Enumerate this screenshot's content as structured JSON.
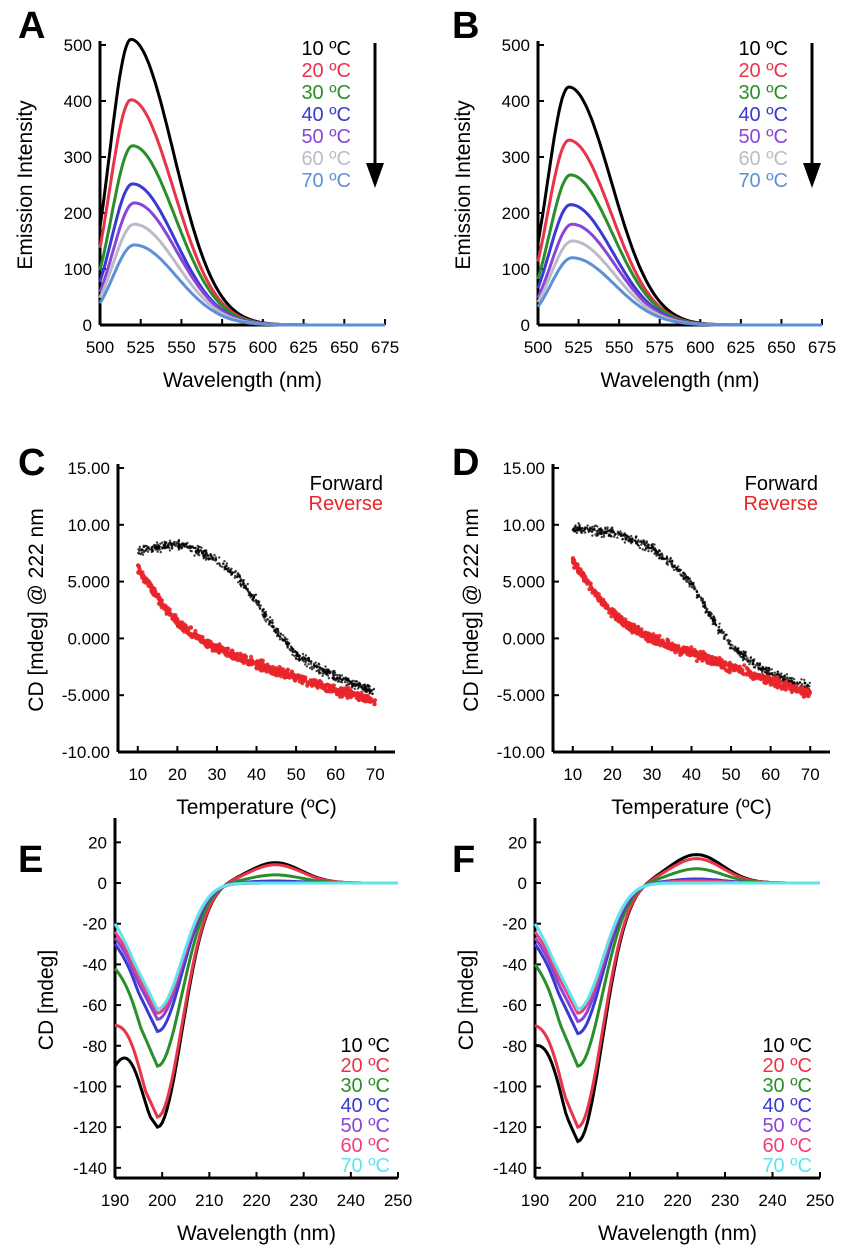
{
  "chart_data": [
    {
      "panel": "A",
      "type": "line",
      "xlabel": "Wavelength (nm)",
      "ylabel": "Emission Intensity",
      "xlim": [
        500,
        675
      ],
      "ylim": [
        0,
        500
      ],
      "xticks": [
        500,
        525,
        550,
        575,
        600,
        625,
        650,
        675
      ],
      "yticks": [
        0,
        100,
        200,
        300,
        400,
        500
      ],
      "legend_arrow": true,
      "series": [
        {
          "name": "10 ºC",
          "color": "#000000",
          "peak_x": 519,
          "peak_y": 510
        },
        {
          "name": "20 ºC",
          "color": "#e8334a",
          "peak_x": 519,
          "peak_y": 402
        },
        {
          "name": "30 ºC",
          "color": "#2a8f2a",
          "peak_x": 520,
          "peak_y": 320
        },
        {
          "name": "40 ºC",
          "color": "#3a3ad0",
          "peak_x": 520,
          "peak_y": 252
        },
        {
          "name": "50 ºC",
          "color": "#8a45d8",
          "peak_x": 521,
          "peak_y": 218
        },
        {
          "name": "60 ºC",
          "color": "#bcbcc8",
          "peak_x": 521,
          "peak_y": 180
        },
        {
          "name": "70 ºC",
          "color": "#5e8fd8",
          "peak_x": 521,
          "peak_y": 143
        }
      ]
    },
    {
      "panel": "B",
      "type": "line",
      "xlabel": "Wavelength (nm)",
      "ylabel": "Emission Intensity",
      "xlim": [
        500,
        675
      ],
      "ylim": [
        0,
        500
      ],
      "xticks": [
        500,
        525,
        550,
        575,
        600,
        625,
        650,
        675
      ],
      "yticks": [
        0,
        100,
        200,
        300,
        400,
        500
      ],
      "legend_arrow": true,
      "series": [
        {
          "name": "10 ºC",
          "color": "#000000",
          "peak_x": 519,
          "peak_y": 425
        },
        {
          "name": "20 ºC",
          "color": "#e8334a",
          "peak_x": 519,
          "peak_y": 330
        },
        {
          "name": "30 ºC",
          "color": "#2a8f2a",
          "peak_x": 520,
          "peak_y": 268
        },
        {
          "name": "40 ºC",
          "color": "#3a3ad0",
          "peak_x": 520,
          "peak_y": 215
        },
        {
          "name": "50 ºC",
          "color": "#8a45d8",
          "peak_x": 521,
          "peak_y": 180
        },
        {
          "name": "60 ºC",
          "color": "#bcbcc8",
          "peak_x": 521,
          "peak_y": 150
        },
        {
          "name": "70 ºC",
          "color": "#5e8fd8",
          "peak_x": 521,
          "peak_y": 120
        }
      ]
    },
    {
      "panel": "C",
      "type": "scatter",
      "xlabel": "Temperature (ºC)",
      "ylabel": "CD [mdeg] @ 222 nm",
      "xlim": [
        5,
        75
      ],
      "ylim": [
        -10,
        15
      ],
      "xticks": [
        10,
        20,
        30,
        40,
        50,
        60,
        70
      ],
      "yticks": [
        -10,
        -5,
        0,
        5,
        10,
        15
      ],
      "ytick_labels": [
        "-10.00",
        "-5.000",
        "0.000",
        "5.000",
        "10.00",
        "15.00"
      ],
      "series": [
        {
          "name": "Forward",
          "color": "#000000",
          "x": [
            10,
            15,
            20,
            25,
            30,
            35,
            40,
            45,
            50,
            55,
            60,
            65,
            70
          ],
          "y": [
            7.7,
            8.0,
            8.3,
            7.7,
            6.9,
            5.5,
            3.3,
            0.6,
            -1.4,
            -2.5,
            -3.4,
            -4.0,
            -4.8
          ]
        },
        {
          "name": "Reverse",
          "color": "#e8262a",
          "x": [
            10,
            15,
            20,
            25,
            30,
            35,
            40,
            45,
            50,
            55,
            60,
            65,
            70
          ],
          "y": [
            6.2,
            3.6,
            1.4,
            0.1,
            -0.9,
            -1.6,
            -2.3,
            -2.9,
            -3.4,
            -4.0,
            -4.5,
            -5.0,
            -5.6
          ]
        }
      ]
    },
    {
      "panel": "D",
      "type": "scatter",
      "xlabel": "Temperature (ºC)",
      "ylabel": "CD [mdeg] @ 222 nm",
      "xlim": [
        5,
        75
      ],
      "ylim": [
        -10,
        15
      ],
      "xticks": [
        10,
        20,
        30,
        40,
        50,
        60,
        70
      ],
      "yticks": [
        -10,
        -5,
        0,
        5,
        10,
        15
      ],
      "ytick_labels": [
        "-10.00",
        "-5.000",
        "0.000",
        "5.000",
        "10.00",
        "15.00"
      ],
      "series": [
        {
          "name": "Forward",
          "color": "#000000",
          "x": [
            10,
            15,
            20,
            25,
            30,
            35,
            40,
            45,
            50,
            55,
            60,
            65,
            70
          ],
          "y": [
            9.7,
            9.5,
            9.3,
            8.7,
            7.9,
            6.6,
            4.8,
            1.9,
            -0.7,
            -2.0,
            -3.0,
            -3.8,
            -4.3
          ]
        },
        {
          "name": "Reverse",
          "color": "#e8262a",
          "x": [
            10,
            15,
            20,
            25,
            30,
            35,
            40,
            45,
            50,
            55,
            60,
            65,
            70
          ],
          "y": [
            6.8,
            4.2,
            2.2,
            0.9,
            0.0,
            -0.7,
            -1.3,
            -1.9,
            -2.5,
            -3.1,
            -3.7,
            -4.3,
            -4.9
          ]
        }
      ]
    },
    {
      "panel": "E",
      "type": "line",
      "xlabel": "Wavelength (nm)",
      "ylabel": "CD [mdeg]",
      "xlim": [
        190,
        250
      ],
      "ylim": [
        -145,
        30
      ],
      "xticks": [
        190,
        200,
        210,
        220,
        230,
        240,
        250
      ],
      "yticks": [
        -140,
        -120,
        -100,
        -80,
        -60,
        -40,
        -20,
        0,
        20
      ],
      "series": [
        {
          "name": "10 ºC",
          "color": "#000000",
          "min": -120,
          "start": -90,
          "max": 10
        },
        {
          "name": "20 ºC",
          "color": "#e8334a",
          "min": -115,
          "start": -70,
          "max": 9
        },
        {
          "name": "30 ºC",
          "color": "#2a8f2a",
          "min": -90,
          "start": -42,
          "max": 4
        },
        {
          "name": "40 ºC",
          "color": "#3a3ad0",
          "min": -73,
          "start": -30,
          "max": 1
        },
        {
          "name": "50 ºC",
          "color": "#8a45d8",
          "min": -67,
          "start": -27,
          "max": 0
        },
        {
          "name": "60 ºC",
          "color": "#f0407a",
          "min": -64,
          "start": -24,
          "max": 0
        },
        {
          "name": "70 ºC",
          "color": "#5fe3ee",
          "min": -62,
          "start": -20,
          "max": 0
        }
      ]
    },
    {
      "panel": "F",
      "type": "line",
      "xlabel": "Wavelength (nm)",
      "ylabel": "CD [mdeg]",
      "xlim": [
        190,
        250
      ],
      "ylim": [
        -145,
        30
      ],
      "xticks": [
        190,
        200,
        210,
        220,
        230,
        240,
        250
      ],
      "yticks": [
        -140,
        -120,
        -100,
        -80,
        -60,
        -40,
        -20,
        0,
        20
      ],
      "series": [
        {
          "name": "10 ºC",
          "color": "#000000",
          "min": -127,
          "start": -80,
          "max": 14
        },
        {
          "name": "20 ºC",
          "color": "#e8334a",
          "min": -120,
          "start": -70,
          "max": 12
        },
        {
          "name": "30 ºC",
          "color": "#2a8f2a",
          "min": -90,
          "start": -40,
          "max": 7
        },
        {
          "name": "40 ºC",
          "color": "#3a3ad0",
          "min": -74,
          "start": -30,
          "max": 2
        },
        {
          "name": "50 ºC",
          "color": "#8a45d8",
          "min": -68,
          "start": -27,
          "max": 1
        },
        {
          "name": "60 ºC",
          "color": "#f0407a",
          "min": -64,
          "start": -24,
          "max": 1
        },
        {
          "name": "70 ºC",
          "color": "#5fe3ee",
          "min": -62,
          "start": -20,
          "max": 0
        }
      ]
    }
  ]
}
